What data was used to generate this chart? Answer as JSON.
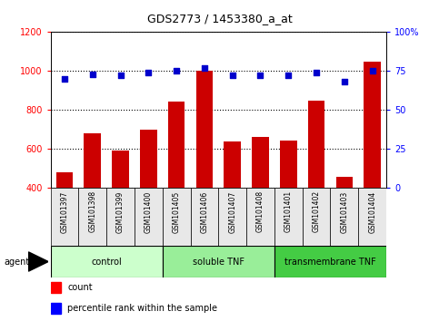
{
  "title": "GDS2773 / 1453380_a_at",
  "categories": [
    "GSM101397",
    "GSM101398",
    "GSM101399",
    "GSM101400",
    "GSM101405",
    "GSM101406",
    "GSM101407",
    "GSM101408",
    "GSM101401",
    "GSM101402",
    "GSM101403",
    "GSM101404"
  ],
  "count_values": [
    480,
    680,
    590,
    700,
    845,
    1000,
    640,
    660,
    645,
    850,
    455,
    1050
  ],
  "percentile_values": [
    70,
    73,
    72,
    74,
    75,
    77,
    72,
    72,
    72,
    74,
    68,
    75
  ],
  "bar_color": "#cc0000",
  "dot_color": "#0000cc",
  "ylim_left": [
    400,
    1200
  ],
  "ylim_right": [
    0,
    100
  ],
  "yticks_left": [
    400,
    600,
    800,
    1000,
    1200
  ],
  "yticks_right": [
    0,
    25,
    50,
    75,
    100
  ],
  "groups": [
    {
      "label": "control",
      "start": 0,
      "end": 3,
      "color": "#ccffcc"
    },
    {
      "label": "soluble TNF",
      "start": 4,
      "end": 7,
      "color": "#99ee99"
    },
    {
      "label": "transmembrane TNF",
      "start": 8,
      "end": 11,
      "color": "#44cc44"
    }
  ],
  "agent_label": "agent",
  "legend_count_label": "count",
  "legend_pct_label": "percentile rank within the sample",
  "background_color": "#ffffff",
  "xtick_bg_color": "#dddddd",
  "group_border_color": "#000000"
}
